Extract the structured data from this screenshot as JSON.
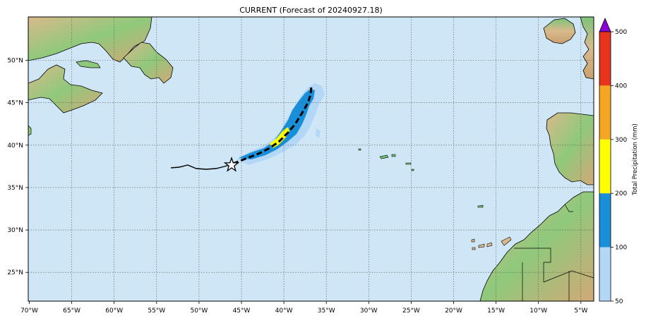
{
  "map": {
    "title": "CURRENT (Forecast of 20240927.18)",
    "lon_labels": [
      "70°W",
      "65°W",
      "60°W",
      "55°W",
      "50°W",
      "45°W",
      "40°W",
      "35°W",
      "30°W",
      "25°W",
      "20°W",
      "15°W",
      "10°W",
      "5°W"
    ],
    "lat_labels": [
      "50°N",
      "45°N",
      "40°N",
      "35°N",
      "30°N",
      "25°N"
    ],
    "extent": {
      "lon_min": -70,
      "lon_max": -3.3,
      "lat_min": 21.7,
      "lat_max": 55.2
    },
    "colors": {
      "ocean": "#cfe6f7",
      "land_low": "#6fbf73",
      "land_mid": "#d9b98b",
      "grid": "#555555"
    }
  },
  "colorbar": {
    "label": "Total Precipitation (mm)",
    "ticks": [
      "50",
      "100",
      "200",
      "300",
      "400",
      "500"
    ],
    "bins": [
      {
        "range": "50-100",
        "color": "#b3d8f7"
      },
      {
        "range": "100-200",
        "color": "#1a8fd9"
      },
      {
        "range": "200-300",
        "color": "#ffff00"
      },
      {
        "range": "300-400",
        "color": "#f5a623"
      },
      {
        "range": "400-500",
        "color": "#e8341c"
      }
    ],
    "extend_color": "#8a00d4"
  },
  "storm": {
    "marker": "star-icon",
    "observed_track_style": "solid",
    "forecast_track_style": "dashed"
  }
}
